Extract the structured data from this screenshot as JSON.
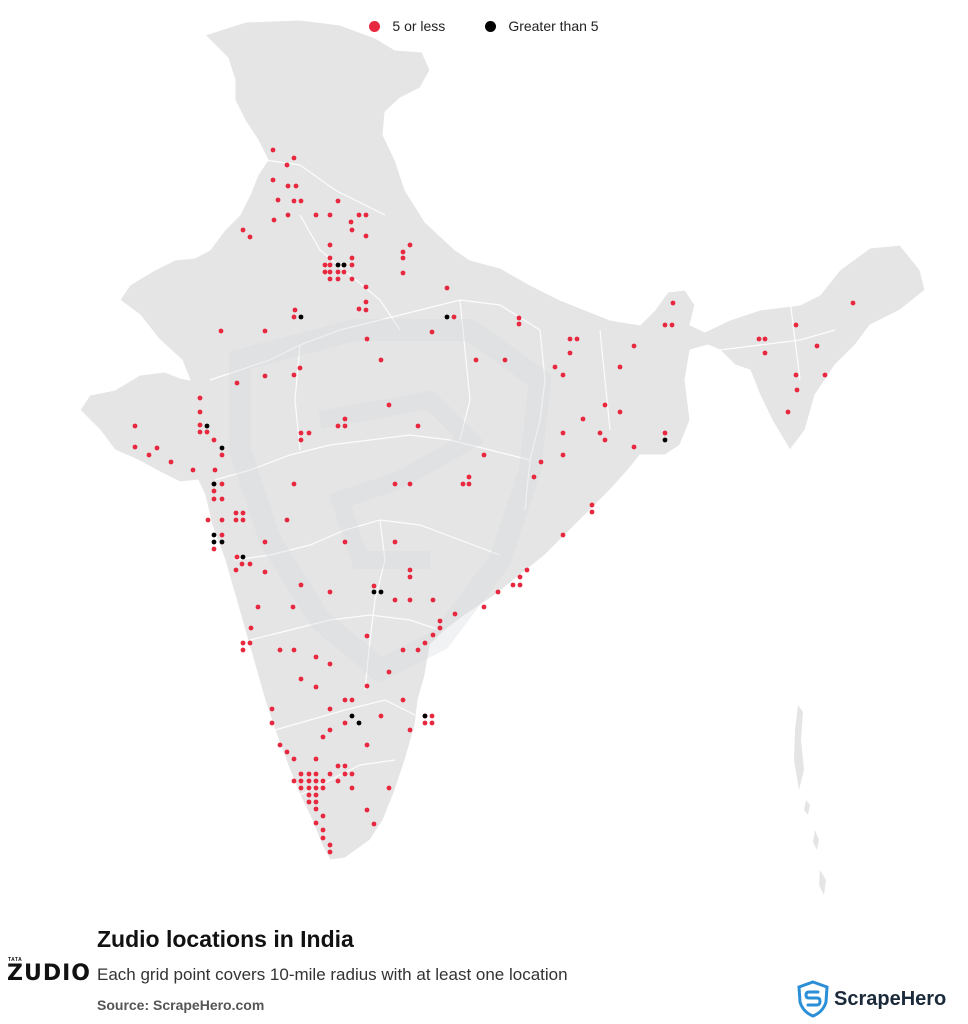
{
  "legend": [
    {
      "label": "5 or less",
      "color": "#e8283e"
    },
    {
      "label": "Greater than 5",
      "color": "#000000"
    }
  ],
  "title": "Zudio locations in India",
  "subtitle": "Each grid point covers 10-mile radius with at least one location",
  "source": "Source: ScrapeHero.com",
  "brand": {
    "small": "TATA",
    "main": "ZUDIO"
  },
  "logo": {
    "name": "ScrapeHero"
  },
  "colors": {
    "land": "#e5e5e5",
    "border": "#ffffff",
    "low": "#e8283e",
    "high": "#000000",
    "logo_blue": "#2a8fd6"
  },
  "chart_data": {
    "type": "scatter",
    "categories": [
      "5 or less",
      "Greater than 5"
    ]
  }
}
